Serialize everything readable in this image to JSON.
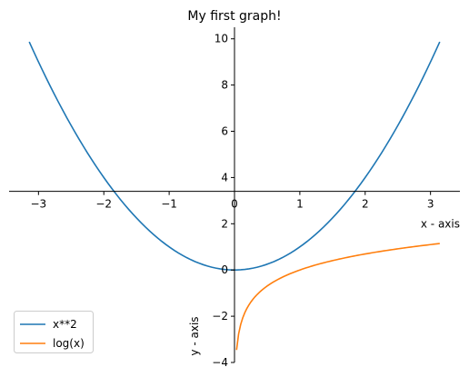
{
  "chart_data": {
    "type": "line",
    "title": "My first graph!",
    "xlabel": "x - axis",
    "ylabel": "y - axis",
    "xlim": [
      -3.45,
      3.45
    ],
    "ylim": [
      -4,
      10.5
    ],
    "x_ticks": [
      -3,
      -2,
      -1,
      0,
      1,
      2,
      3
    ],
    "x_tick_labels": [
      "−3",
      "−2",
      "−1",
      "0",
      "1",
      "2",
      "3"
    ],
    "y_ticks": [
      -4,
      -2,
      0,
      2,
      4,
      6,
      8,
      10
    ],
    "y_tick_labels": [
      "−4",
      "−2",
      "0",
      "2",
      "4",
      "6",
      "8",
      "10"
    ],
    "x_axis_crosses_y_at": 3.4,
    "y_axis_crosses_x_at": 0,
    "grid": false,
    "legend_position": "bottom-left",
    "series": [
      {
        "name": "x**2",
        "color": "#1f77b4",
        "function": "x**2",
        "x_range": [
          -3.14159,
          3.14159
        ]
      },
      {
        "name": "log(x)",
        "color": "#ff7f0e",
        "function": "log(x)",
        "x_range": [
          0.0314,
          3.14159
        ]
      }
    ]
  }
}
